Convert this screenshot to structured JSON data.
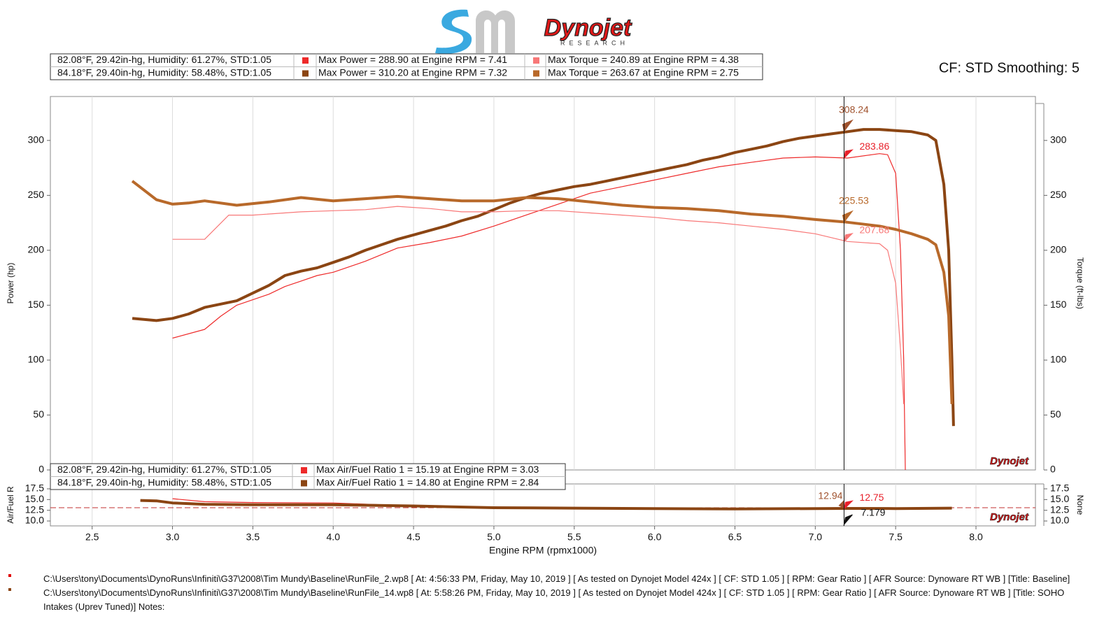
{
  "logo": {
    "brand": "Dynojet",
    "sub": "RESEARCH"
  },
  "header": {
    "settings": "CF: STD Smoothing: 5"
  },
  "runs": [
    {
      "conditions": "82.08°F, 29.42in-hg, Humidity: 61.27%, STD:1.05"
    },
    {
      "conditions": "84.18°F, 29.40in-hg, Humidity: 58.48%, STD:1.05"
    }
  ],
  "chart_data": [
    {
      "type": "line",
      "xlabel": "Engine RPM (rpmx1000)",
      "ylabel": "Power (hp)",
      "y2label": "Torque (ft-lbs)",
      "xlim": [
        2.24,
        8.37
      ],
      "ylim": [
        0,
        340
      ],
      "y2lim": [
        0,
        340
      ],
      "xticks": [
        {
          "value": 2.5,
          "label": "2.5"
        },
        {
          "value": 3,
          "label": "3.0"
        },
        {
          "value": 3.5,
          "label": "3.5"
        },
        {
          "value": 4,
          "label": "4.0"
        },
        {
          "value": 4.5,
          "label": "4.5"
        },
        {
          "value": 5,
          "label": "5.0"
        },
        {
          "value": 5.5,
          "label": "5.5"
        },
        {
          "value": 6,
          "label": "6.0"
        },
        {
          "value": 6.5,
          "label": "6.5"
        },
        {
          "value": 7,
          "label": "7.0"
        },
        {
          "value": 7.5,
          "label": "7.5"
        },
        {
          "value": 8,
          "label": "8.0"
        }
      ],
      "yticks": [
        0,
        50,
        100,
        150,
        200,
        250,
        300
      ],
      "y2ticks": [
        0,
        50,
        100,
        150,
        200,
        250,
        300
      ],
      "grid": "x",
      "cursor": 7.179,
      "series": [
        {
          "name": "Max Power = 288.90 at Engine RPM = 7.41",
          "color": "#ee2a2a",
          "line_width": 1.2,
          "x": [
            3.0,
            3.2,
            3.3,
            3.4,
            3.5,
            3.6,
            3.7,
            3.8,
            3.9,
            4.0,
            4.2,
            4.4,
            4.6,
            4.8,
            5.0,
            5.2,
            5.4,
            5.6,
            5.8,
            6.0,
            6.2,
            6.4,
            6.6,
            6.8,
            7.0,
            7.2,
            7.4,
            7.45,
            7.5,
            7.53,
            7.55,
            7.56
          ],
          "values": [
            120,
            128,
            140,
            150,
            155,
            160,
            167,
            172,
            177,
            180,
            190,
            202,
            207,
            213,
            222,
            232,
            242,
            252,
            258,
            264,
            270,
            276,
            280,
            284,
            285,
            284,
            288,
            287,
            270,
            200,
            100,
            0
          ]
        },
        {
          "name": "Max Power = 310.20 at Engine RPM = 7.32",
          "color": "#8b4513",
          "line_width": 4,
          "x": [
            2.75,
            2.9,
            3.0,
            3.1,
            3.2,
            3.3,
            3.4,
            3.5,
            3.6,
            3.7,
            3.8,
            3.9,
            4.0,
            4.1,
            4.2,
            4.3,
            4.4,
            4.5,
            4.6,
            4.7,
            4.8,
            4.9,
            5.0,
            5.1,
            5.2,
            5.3,
            5.4,
            5.5,
            5.6,
            5.7,
            5.8,
            5.9,
            6.0,
            6.1,
            6.2,
            6.3,
            6.4,
            6.5,
            6.6,
            6.7,
            6.8,
            6.9,
            7.0,
            7.1,
            7.2,
            7.3,
            7.4,
            7.5,
            7.6,
            7.7,
            7.75,
            7.8,
            7.83,
            7.85,
            7.86
          ],
          "values": [
            138,
            136,
            138,
            142,
            148,
            151,
            154,
            161,
            168,
            177,
            181,
            184,
            189,
            194,
            200,
            205,
            210,
            214,
            218,
            222,
            227,
            231,
            237,
            243,
            248,
            252,
            255,
            258,
            260,
            263,
            266,
            269,
            272,
            275,
            278,
            282,
            285,
            289,
            292,
            295,
            299,
            302,
            304,
            306,
            308,
            310,
            310,
            309,
            308,
            305,
            300,
            260,
            200,
            100,
            40
          ]
        },
        {
          "name": "Max Torque = 240.89 at Engine RPM = 4.38",
          "color": "#f87878",
          "line_width": 1.2,
          "axis": "y2",
          "x": [
            3.0,
            3.2,
            3.35,
            3.5,
            3.8,
            4.0,
            4.2,
            4.4,
            4.6,
            4.8,
            5.0,
            5.2,
            5.4,
            5.6,
            5.8,
            6.0,
            6.2,
            6.4,
            6.6,
            6.8,
            7.0,
            7.2,
            7.4,
            7.45,
            7.5,
            7.53,
            7.55
          ],
          "values": [
            210,
            210,
            232,
            232,
            235,
            236,
            237,
            240,
            238,
            235,
            235,
            236,
            236,
            234,
            232,
            230,
            227,
            225,
            222,
            219,
            215,
            208,
            206,
            200,
            170,
            110,
            60
          ]
        },
        {
          "name": "Max Torque = 263.67 at Engine RPM = 2.75",
          "color": "#b8692a",
          "line_width": 4,
          "axis": "y2",
          "x": [
            2.75,
            2.9,
            3.0,
            3.1,
            3.2,
            3.4,
            3.6,
            3.8,
            4.0,
            4.2,
            4.4,
            4.6,
            4.8,
            5.0,
            5.2,
            5.4,
            5.6,
            5.8,
            6.0,
            6.2,
            6.4,
            6.6,
            6.8,
            7.0,
            7.2,
            7.4,
            7.5,
            7.6,
            7.7,
            7.75,
            7.8,
            7.83,
            7.85
          ],
          "values": [
            263,
            246,
            242,
            243,
            245,
            241,
            244,
            248,
            245,
            247,
            249,
            247,
            245,
            245,
            248,
            247,
            244,
            241,
            239,
            238,
            236,
            233,
            231,
            228,
            225.5,
            222,
            219,
            215,
            210,
            205,
            180,
            140,
            60
          ]
        }
      ],
      "annotations": [
        {
          "value": 308.24,
          "color": "#a0522d"
        },
        {
          "value": 283.86,
          "color": "#e8202a"
        },
        {
          "value": 225.53,
          "color": "#b8692a"
        },
        {
          "value": 207.68,
          "color": "#f87878"
        }
      ]
    },
    {
      "type": "line",
      "ylabel": "Air/Fuel R",
      "y2label": "None",
      "ylim": [
        8.86,
        18.64
      ],
      "y2lim": [
        8.86,
        18.64
      ],
      "yticks": [
        {
          "value": 10,
          "label": "10.0"
        },
        {
          "value": 12.5,
          "label": "12.5"
        },
        {
          "value": 15,
          "label": "15.0"
        },
        {
          "value": 17.5,
          "label": "17.5"
        }
      ],
      "y2ticks": [
        {
          "value": 10,
          "label": "10.0"
        },
        {
          "value": 12.5,
          "label": "12.5"
        },
        {
          "value": 15,
          "label": "15.0"
        },
        {
          "value": 17.5,
          "label": "17.5"
        }
      ],
      "target_afr": 13.1,
      "target_color": "#c03030",
      "series": [
        {
          "name": "Max Air/Fuel Ratio 1 = 15.19 at Engine RPM = 3.03",
          "color": "#ee2a2a",
          "line_width": 1.2,
          "x": [
            3.0,
            3.2,
            3.5,
            4.0,
            4.5,
            5.0,
            5.5,
            6.0,
            6.5,
            7.0,
            7.2,
            7.5
          ],
          "values": [
            15.2,
            14.5,
            14.3,
            14.2,
            13.5,
            13.0,
            12.9,
            12.8,
            12.8,
            12.8,
            12.75,
            12.8
          ]
        },
        {
          "name": "Max Air/Fuel Ratio 1 = 14.80 at Engine RPM = 2.84",
          "color": "#8b4513",
          "line_width": 4,
          "x": [
            2.8,
            2.9,
            3.0,
            3.2,
            3.5,
            4.0,
            4.5,
            5.0,
            5.5,
            6.0,
            6.5,
            7.0,
            7.2,
            7.5,
            7.85
          ],
          "values": [
            14.8,
            14.7,
            14.2,
            13.9,
            13.8,
            13.8,
            13.5,
            13.1,
            13.0,
            12.9,
            12.8,
            12.9,
            12.94,
            12.9,
            13.0
          ]
        }
      ],
      "annotations": [
        {
          "value": 12.94,
          "color": "#a0522d"
        },
        {
          "value": 12.75,
          "color": "#e8202a"
        }
      ]
    }
  ],
  "footer": {
    "files": [
      "C:\\Users\\tony\\Documents\\DynoRuns\\Infiniti\\G37\\2008\\Tim Mundy\\Baseline\\RunFile_2.wp8 [ At: 4:56:33 PM, Friday, May 10, 2019 ] [ As tested on Dynojet Model 424x ] [ CF: STD 1.05 ] [ RPM: Gear Ratio ] [ AFR Source: Dynoware RT WB ] [Title: Baseline]",
      "C:\\Users\\tony\\Documents\\DynoRuns\\Infiniti\\G37\\2008\\Tim Mundy\\Baseline\\RunFile_14.wp8 [ At: 5:58:26 PM, Friday, May 10, 2019 ] [ As tested on Dynojet Model 424x ] [ CF: STD 1.05 ] [ RPM: Gear Ratio ] [ AFR Source: Dynoware RT WB ] [Title: SOHO Intakes (Uprev Tuned)]  Notes:"
    ]
  }
}
